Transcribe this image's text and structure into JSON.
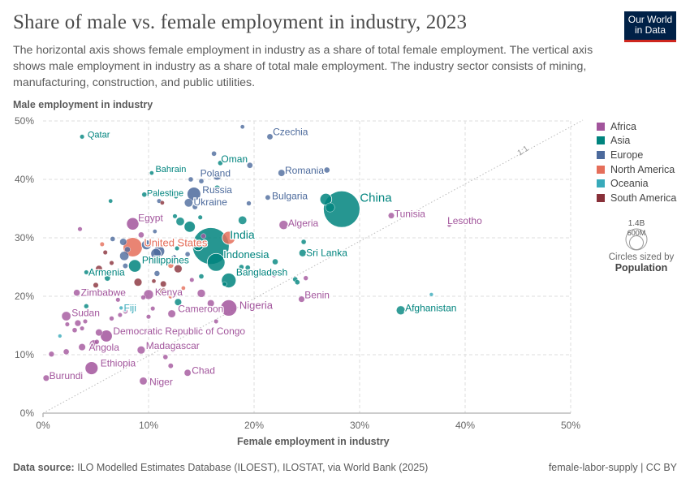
{
  "header": {
    "title": "Share of male vs. female employment in industry, 2023",
    "subtitle": "The horizontal axis shows female employment in industry as a share of total female employment. The vertical axis shows male employment in industry as a share of total male employment. The industry sector consists of mining, manufacturing, construction, and public utilities.",
    "logo_line1": "Our World",
    "logo_line2": "in Data"
  },
  "colors": {
    "Africa": "#a2559c",
    "Asia": "#00847e",
    "Europe": "#4c6a9c",
    "North America": "#e56e5a",
    "Oceania": "#38aaba",
    "South America": "#883039"
  },
  "legend": {
    "items": [
      "Africa",
      "Asia",
      "Europe",
      "North America",
      "Oceania",
      "South America"
    ],
    "size_max_label": "1.4B",
    "size_min_label": "600M",
    "size_note": "Circles sized by",
    "size_note_bold": "Population"
  },
  "footer": {
    "source_label": "Data source:",
    "source_text": "ILO Modelled Estimates Database (ILOEST), ILOSTAT, via World Bank (2025)",
    "right_text": "female-labor-supply | CC BY"
  },
  "chart_data": {
    "type": "scatter",
    "title": "Share of male vs. female employment in industry, 2023",
    "xlabel": "Female employment in industry",
    "ylabel": "Male employment in industry",
    "xlim": [
      0,
      50
    ],
    "ylim": [
      0,
      50
    ],
    "xticks": [
      "0%",
      "10%",
      "20%",
      "30%",
      "40%",
      "50%"
    ],
    "yticks": [
      "0%",
      "10%",
      "20%",
      "30%",
      "40%",
      "50%"
    ],
    "reference_line_label": "1:1",
    "labeled_points": [
      {
        "name": "Qatar",
        "x": 3.7,
        "y": 47.3,
        "region": "Asia",
        "pop": 3
      },
      {
        "name": "Czechia",
        "x": 21.5,
        "y": 47.3,
        "region": "Europe",
        "pop": 11
      },
      {
        "name": "Oman",
        "x": 16.8,
        "y": 42.8,
        "region": "Asia",
        "pop": 5
      },
      {
        "name": "Bahrain",
        "x": 10.3,
        "y": 41.1,
        "region": "Asia",
        "pop": 2
      },
      {
        "name": "Poland",
        "x": 16.5,
        "y": 40.6,
        "region": "Europe",
        "pop": 37
      },
      {
        "name": "Romania",
        "x": 22.6,
        "y": 41.1,
        "region": "Europe",
        "pop": 19
      },
      {
        "name": "Palestine",
        "x": 9.6,
        "y": 37.4,
        "region": "Asia",
        "pop": 5
      },
      {
        "name": "Russia",
        "x": 14.3,
        "y": 37.5,
        "region": "Europe",
        "pop": 144
      },
      {
        "name": "Ukraine",
        "x": 13.8,
        "y": 36.0,
        "region": "Europe",
        "pop": 37
      },
      {
        "name": "Bulgaria",
        "x": 21.3,
        "y": 36.9,
        "region": "Europe",
        "pop": 6
      },
      {
        "name": "China",
        "x": 28.3,
        "y": 34.9,
        "region": "Asia",
        "pop": 1410
      },
      {
        "name": "Tunisia",
        "x": 33.0,
        "y": 33.8,
        "region": "Africa",
        "pop": 12
      },
      {
        "name": "Lesotho",
        "x": 38.5,
        "y": 32.2,
        "region": "Africa",
        "pop": 2
      },
      {
        "name": "Egypt",
        "x": 8.5,
        "y": 32.4,
        "region": "Africa",
        "pop": 112
      },
      {
        "name": "Algeria",
        "x": 22.8,
        "y": 32.2,
        "region": "Africa",
        "pop": 45
      },
      {
        "name": "India",
        "x": 15.9,
        "y": 28.6,
        "region": "Asia",
        "pop": 1430
      },
      {
        "name": "United States",
        "x": 8.5,
        "y": 28.4,
        "region": "North America",
        "pop": 335
      },
      {
        "name": "Indonesia",
        "x": 16.4,
        "y": 25.8,
        "region": "Asia",
        "pop": 277
      },
      {
        "name": "Sri Lanka",
        "x": 24.6,
        "y": 27.4,
        "region": "Asia",
        "pop": 22
      },
      {
        "name": "Philippines",
        "x": 8.7,
        "y": 25.2,
        "region": "Asia",
        "pop": 117
      },
      {
        "name": "Armenia",
        "x": 4.1,
        "y": 24.1,
        "region": "Asia",
        "pop": 3
      },
      {
        "name": "Bangladesh",
        "x": 17.6,
        "y": 22.7,
        "region": "Asia",
        "pop": 173
      },
      {
        "name": "Zimbabwe",
        "x": 3.2,
        "y": 20.6,
        "region": "Africa",
        "pop": 16
      },
      {
        "name": "Kenya",
        "x": 10.0,
        "y": 20.3,
        "region": "Africa",
        "pop": 55
      },
      {
        "name": "Nigeria",
        "x": 17.6,
        "y": 18.0,
        "region": "Africa",
        "pop": 224
      },
      {
        "name": "Benin",
        "x": 24.5,
        "y": 19.5,
        "region": "Africa",
        "pop": 13
      },
      {
        "name": "Afghanistan",
        "x": 33.9,
        "y": 17.6,
        "region": "Asia",
        "pop": 42
      },
      {
        "name": "Fiji",
        "x": 7.4,
        "y": 18.0,
        "region": "Oceania",
        "pop": 1
      },
      {
        "name": "Sudan",
        "x": 2.2,
        "y": 16.6,
        "region": "Africa",
        "pop": 48
      },
      {
        "name": "Cameroon",
        "x": 12.2,
        "y": 17.0,
        "region": "Africa",
        "pop": 28
      },
      {
        "name": "Democratic Republic of Congo",
        "x": 6.0,
        "y": 13.2,
        "region": "Africa",
        "pop": 102
      },
      {
        "name": "Madagascar",
        "x": 9.3,
        "y": 10.8,
        "region": "Africa",
        "pop": 30
      },
      {
        "name": "Angola",
        "x": 4.8,
        "y": 11.8,
        "region": "Africa",
        "pop": 37
      },
      {
        "name": "Ethiopia",
        "x": 4.6,
        "y": 7.7,
        "region": "Africa",
        "pop": 127
      },
      {
        "name": "Chad",
        "x": 13.7,
        "y": 6.9,
        "region": "Africa",
        "pop": 18
      },
      {
        "name": "Burundi",
        "x": 0.3,
        "y": 6.0,
        "region": "Africa",
        "pop": 13
      },
      {
        "name": "Niger",
        "x": 9.5,
        "y": 5.5,
        "region": "Africa",
        "pop": 27
      }
    ],
    "other_points": [
      {
        "x": 18.9,
        "y": 49.0,
        "region": "Europe",
        "pop": 2
      },
      {
        "x": 16.2,
        "y": 44.4,
        "region": "Europe",
        "pop": 5
      },
      {
        "x": 19.1,
        "y": 43.6,
        "region": "Europe",
        "pop": 3
      },
      {
        "x": 19.6,
        "y": 42.4,
        "region": "Europe",
        "pop": 10
      },
      {
        "x": 26.9,
        "y": 41.6,
        "region": "Europe",
        "pop": 10
      },
      {
        "x": 14.0,
        "y": 40.0,
        "region": "Europe",
        "pop": 5
      },
      {
        "x": 15.0,
        "y": 39.7,
        "region": "Europe",
        "pop": 5
      },
      {
        "x": 16.5,
        "y": 38.5,
        "region": "Asia",
        "pop": 10
      },
      {
        "x": 12.6,
        "y": 37.1,
        "region": "Asia",
        "pop": 4
      },
      {
        "x": 14.4,
        "y": 35.3,
        "region": "Europe",
        "pop": 7
      },
      {
        "x": 19.5,
        "y": 35.9,
        "region": "Europe",
        "pop": 4
      },
      {
        "x": 26.8,
        "y": 36.6,
        "region": "Asia",
        "pop": 100
      },
      {
        "x": 27.2,
        "y": 35.2,
        "region": "Asia",
        "pop": 50
      },
      {
        "x": 11.0,
        "y": 36.3,
        "region": "Europe",
        "pop": 3
      },
      {
        "x": 6.4,
        "y": 36.3,
        "region": "Asia",
        "pop": 2
      },
      {
        "x": 11.3,
        "y": 36.0,
        "region": "South America",
        "pop": 2
      },
      {
        "x": 18.9,
        "y": 33.0,
        "region": "Asia",
        "pop": 36
      },
      {
        "x": 12.5,
        "y": 33.7,
        "region": "Asia",
        "pop": 3
      },
      {
        "x": 13.0,
        "y": 32.8,
        "region": "Asia",
        "pop": 36
      },
      {
        "x": 13.9,
        "y": 31.9,
        "region": "Asia",
        "pop": 85
      },
      {
        "x": 14.9,
        "y": 33.5,
        "region": "Asia",
        "pop": 3
      },
      {
        "x": 17.6,
        "y": 30.0,
        "region": "North America",
        "pop": 128
      },
      {
        "x": 15.2,
        "y": 30.3,
        "region": "Africa",
        "pop": 5
      },
      {
        "x": 14.7,
        "y": 28.7,
        "region": "Asia",
        "pop": 71
      },
      {
        "x": 13.6,
        "y": 29.2,
        "region": "Europe",
        "pop": 3
      },
      {
        "x": 9.3,
        "y": 30.5,
        "region": "Africa",
        "pop": 10
      },
      {
        "x": 9.8,
        "y": 28.8,
        "region": "Europe",
        "pop": 60
      },
      {
        "x": 10.7,
        "y": 27.3,
        "region": "Europe",
        "pop": 68
      },
      {
        "x": 7.6,
        "y": 29.3,
        "region": "Europe",
        "pop": 20
      },
      {
        "x": 8.0,
        "y": 28.0,
        "region": "Europe",
        "pop": 10
      },
      {
        "x": 5.6,
        "y": 28.9,
        "region": "North America",
        "pop": 3
      },
      {
        "x": 5.9,
        "y": 27.5,
        "region": "South America",
        "pop": 3
      },
      {
        "x": 3.5,
        "y": 31.5,
        "region": "Africa",
        "pop": 3
      },
      {
        "x": 6.6,
        "y": 29.8,
        "region": "Europe",
        "pop": 5
      },
      {
        "x": 10.6,
        "y": 31.1,
        "region": "Europe",
        "pop": 2
      },
      {
        "x": 7.7,
        "y": 26.9,
        "region": "Europe",
        "pop": 48
      },
      {
        "x": 11.0,
        "y": 27.7,
        "region": "Europe",
        "pop": 84
      },
      {
        "x": 12.4,
        "y": 26.7,
        "region": "Europe",
        "pop": 4
      },
      {
        "x": 13.7,
        "y": 27.2,
        "region": "Europe",
        "pop": 5
      },
      {
        "x": 12.8,
        "y": 24.7,
        "region": "South America",
        "pop": 30
      },
      {
        "x": 10.8,
        "y": 23.9,
        "region": "Europe",
        "pop": 9
      },
      {
        "x": 12.1,
        "y": 25.3,
        "region": "North America",
        "pop": 10
      },
      {
        "x": 6.5,
        "y": 25.7,
        "region": "South America",
        "pop": 3
      },
      {
        "x": 7.8,
        "y": 25.2,
        "region": "Europe",
        "pop": 6
      },
      {
        "x": 5.3,
        "y": 24.7,
        "region": "South America",
        "pop": 18
      },
      {
        "x": 6.1,
        "y": 23.1,
        "region": "Asia",
        "pop": 10
      },
      {
        "x": 5.0,
        "y": 21.9,
        "region": "South America",
        "pop": 7
      },
      {
        "x": 9.0,
        "y": 22.4,
        "region": "South America",
        "pop": 30
      },
      {
        "x": 10.5,
        "y": 22.6,
        "region": "South America",
        "pop": 2
      },
      {
        "x": 11.4,
        "y": 22.1,
        "region": "South America",
        "pop": 12
      },
      {
        "x": 11.4,
        "y": 20.8,
        "region": "South America",
        "pop": 17
      },
      {
        "x": 13.3,
        "y": 21.4,
        "region": "North America",
        "pop": 2
      },
      {
        "x": 14.1,
        "y": 22.8,
        "region": "Africa",
        "pop": 3
      },
      {
        "x": 15.0,
        "y": 23.4,
        "region": "Asia",
        "pop": 5
      },
      {
        "x": 15.0,
        "y": 20.5,
        "region": "Africa",
        "pop": 32
      },
      {
        "x": 17.2,
        "y": 22.1,
        "region": "Asia",
        "pop": 3
      },
      {
        "x": 18.8,
        "y": 25.0,
        "region": "Asia",
        "pop": 5
      },
      {
        "x": 19.4,
        "y": 24.9,
        "region": "Asia",
        "pop": 5
      },
      {
        "x": 22.0,
        "y": 25.9,
        "region": "Asia",
        "pop": 10
      },
      {
        "x": 23.9,
        "y": 22.9,
        "region": "Asia",
        "pop": 5
      },
      {
        "x": 24.1,
        "y": 22.4,
        "region": "Asia",
        "pop": 5
      },
      {
        "x": 24.7,
        "y": 29.3,
        "region": "Asia",
        "pop": 5
      },
      {
        "x": 21.9,
        "y": 23.6,
        "region": "Africa",
        "pop": 3
      },
      {
        "x": 12.1,
        "y": 20.0,
        "region": "North America",
        "pop": 5
      },
      {
        "x": 9.5,
        "y": 19.8,
        "region": "Africa",
        "pop": 4
      },
      {
        "x": 5.8,
        "y": 20.5,
        "region": "Africa",
        "pop": 5
      },
      {
        "x": 7.1,
        "y": 19.4,
        "region": "Africa",
        "pop": 3
      },
      {
        "x": 7.2,
        "y": 20.6,
        "region": "Oceania",
        "pop": 2
      },
      {
        "x": 7.8,
        "y": 17.4,
        "region": "Africa",
        "pop": 4
      },
      {
        "x": 7.3,
        "y": 16.8,
        "region": "Africa",
        "pop": 3
      },
      {
        "x": 4.1,
        "y": 18.3,
        "region": "Asia",
        "pop": 4
      },
      {
        "x": 10.4,
        "y": 17.9,
        "region": "Africa",
        "pop": 3
      },
      {
        "x": 10.0,
        "y": 16.5,
        "region": "Africa",
        "pop": 3
      },
      {
        "x": 12.8,
        "y": 19.0,
        "region": "Asia",
        "pop": 20
      },
      {
        "x": 15.9,
        "y": 18.8,
        "region": "Africa",
        "pop": 20
      },
      {
        "x": 3.3,
        "y": 15.4,
        "region": "Africa",
        "pop": 14
      },
      {
        "x": 4.0,
        "y": 15.7,
        "region": "Africa",
        "pop": 3
      },
      {
        "x": 2.3,
        "y": 15.2,
        "region": "Africa",
        "pop": 3
      },
      {
        "x": 3.0,
        "y": 14.2,
        "region": "Africa",
        "pop": 5
      },
      {
        "x": 3.7,
        "y": 14.5,
        "region": "Africa",
        "pop": 3
      },
      {
        "x": 5.3,
        "y": 13.8,
        "region": "Africa",
        "pop": 20
      },
      {
        "x": 1.6,
        "y": 13.2,
        "region": "Oceania",
        "pop": 1
      },
      {
        "x": 6.5,
        "y": 16.2,
        "region": "Africa",
        "pop": 4
      },
      {
        "x": 9.9,
        "y": 14.1,
        "region": "Africa",
        "pop": 4
      },
      {
        "x": 16.4,
        "y": 15.7,
        "region": "Africa",
        "pop": 3
      },
      {
        "x": 12.3,
        "y": 10.8,
        "region": "Africa",
        "pop": 5
      },
      {
        "x": 3.7,
        "y": 11.3,
        "region": "Africa",
        "pop": 20
      },
      {
        "x": 2.2,
        "y": 10.5,
        "region": "Africa",
        "pop": 10
      },
      {
        "x": 0.8,
        "y": 10.1,
        "region": "Africa",
        "pop": 8
      },
      {
        "x": 5.1,
        "y": 12.2,
        "region": "Africa",
        "pop": 4
      },
      {
        "x": 11.6,
        "y": 9.6,
        "region": "Africa",
        "pop": 5
      },
      {
        "x": 5.9,
        "y": 8.9,
        "region": "Africa",
        "pop": 4
      },
      {
        "x": 12.1,
        "y": 8.1,
        "region": "Africa",
        "pop": 6
      },
      {
        "x": 36.8,
        "y": 20.3,
        "region": "Oceania",
        "pop": 1
      },
      {
        "x": 24.9,
        "y": 23.1,
        "region": "Africa",
        "pop": 4
      },
      {
        "x": 19.5,
        "y": 18.3,
        "region": "Africa",
        "pop": 3
      },
      {
        "x": 12.7,
        "y": 28.2,
        "region": "Asia",
        "pop": 3
      }
    ]
  }
}
